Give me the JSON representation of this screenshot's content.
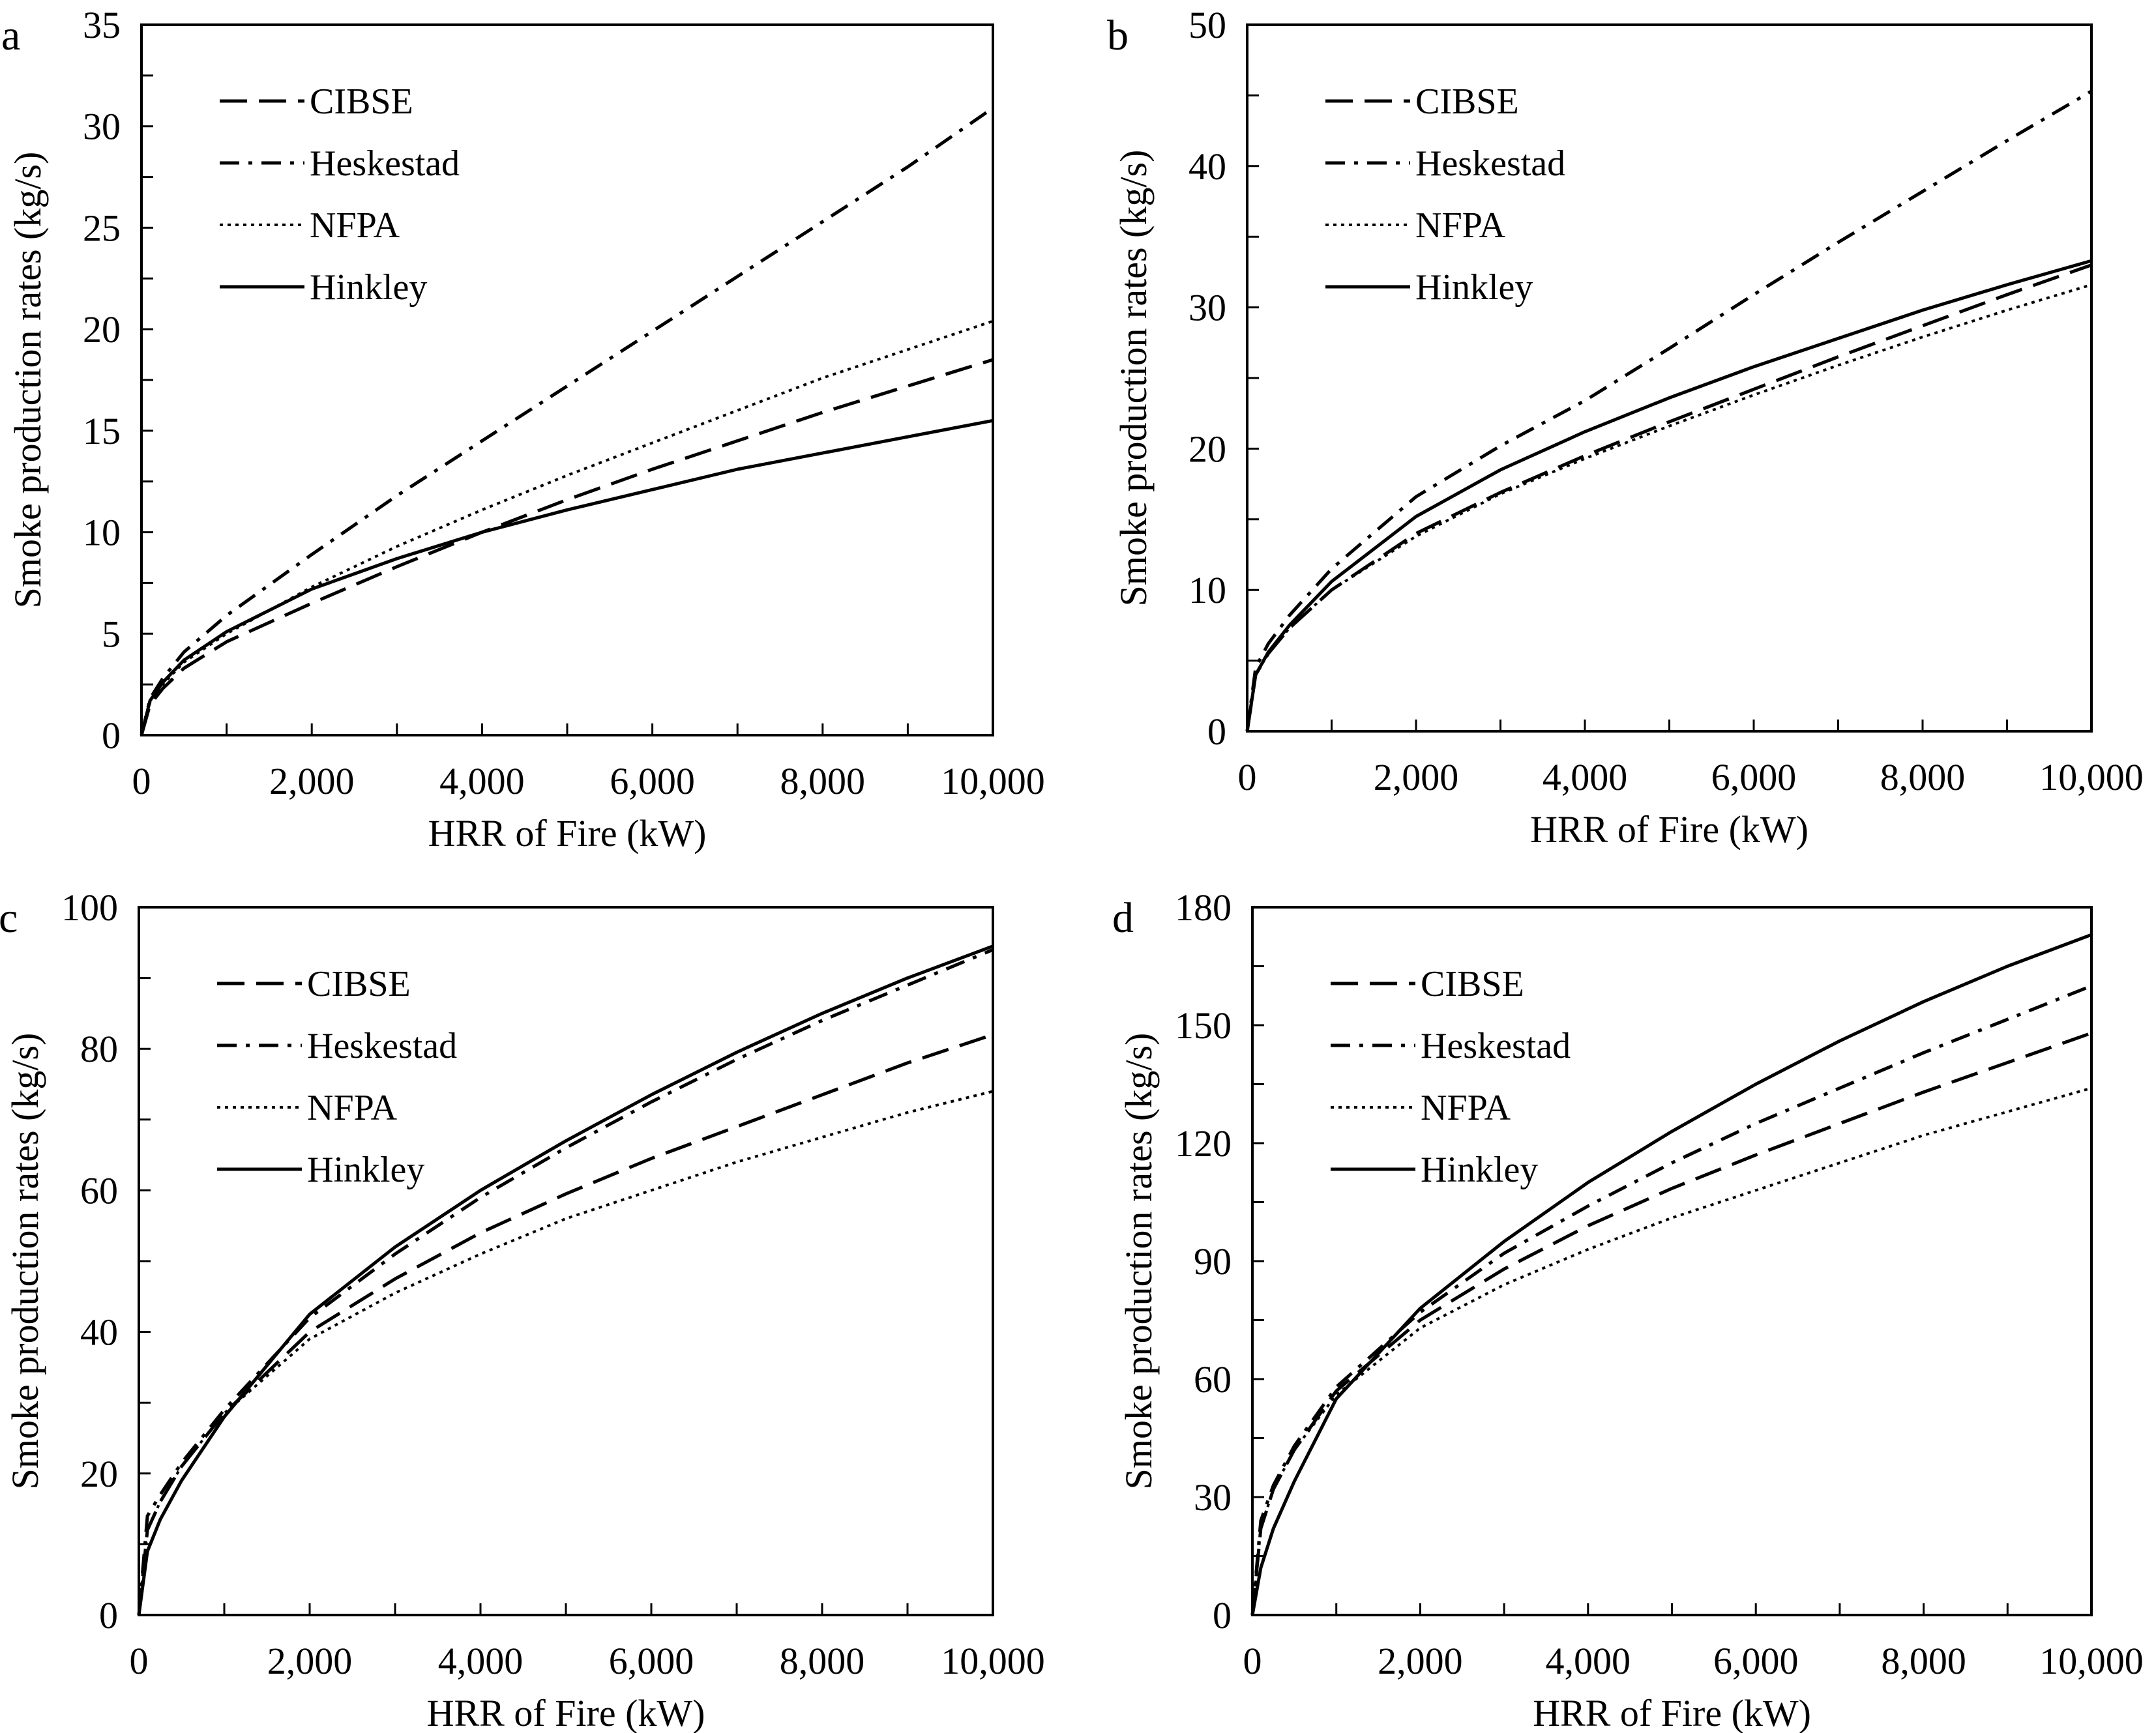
{
  "chart_data": [
    {
      "type": "line",
      "panel_label": "a",
      "xlabel": "HRR of Fire (kW)",
      "ylabel": "Smoke production rates (kg/s)",
      "xlim": [
        0,
        10000
      ],
      "ylim": [
        0,
        35
      ],
      "xticks": [
        0,
        2000,
        4000,
        6000,
        8000,
        10000
      ],
      "xtick_labels": [
        "0",
        "2,000",
        "4,000",
        "6,000",
        "8,000",
        "10,000"
      ],
      "yticks": [
        0,
        5,
        10,
        15,
        20,
        25,
        30,
        35
      ],
      "ytick_labels": [
        "0",
        "5",
        "10",
        "15",
        "20",
        "25",
        "30",
        "35"
      ],
      "grid": false,
      "legend_position": "top-left",
      "x": [
        0,
        100,
        250,
        500,
        1000,
        2000,
        3000,
        4000,
        5000,
        6000,
        7000,
        8000,
        9000,
        10000
      ],
      "series": [
        {
          "name": "CIBSE",
          "style": "dashed",
          "values": [
            0,
            1.5,
            2.3,
            3.3,
            4.6,
            6.5,
            8.3,
            10.0,
            11.6,
            13.1,
            14.5,
            15.9,
            17.2,
            18.5
          ]
        },
        {
          "name": "Heskestad",
          "style": "dash-dot",
          "values": [
            0,
            1.8,
            2.8,
            4.1,
            5.9,
            8.9,
            11.8,
            14.5,
            17.2,
            19.9,
            22.6,
            25.3,
            28.0,
            30.9
          ]
        },
        {
          "name": "NFPA",
          "style": "dotted",
          "values": [
            0,
            1.6,
            2.5,
            3.6,
            5.0,
            7.3,
            9.3,
            11.1,
            12.8,
            14.4,
            16.0,
            17.6,
            19.0,
            20.4
          ]
        },
        {
          "name": "Hinkley",
          "style": "solid",
          "values": [
            0,
            1.7,
            2.6,
            3.7,
            5.1,
            7.2,
            8.7,
            10.0,
            11.1,
            12.1,
            13.1,
            13.9,
            14.7,
            15.5
          ]
        }
      ]
    },
    {
      "type": "line",
      "panel_label": "b",
      "xlabel": "HRR of Fire (kW)",
      "ylabel": "Smoke production rates (kg/s)",
      "xlim": [
        0,
        10000
      ],
      "ylim": [
        0,
        50
      ],
      "xticks": [
        0,
        2000,
        4000,
        6000,
        8000,
        10000
      ],
      "xtick_labels": [
        "0",
        "2,000",
        "4,000",
        "6,000",
        "8,000",
        "10,000"
      ],
      "yticks": [
        0,
        10,
        20,
        30,
        40,
        50
      ],
      "ytick_labels": [
        "0",
        "10",
        "20",
        "30",
        "40",
        "50"
      ],
      "grid": false,
      "legend_position": "top-left",
      "x": [
        0,
        100,
        250,
        500,
        1000,
        2000,
        3000,
        4000,
        5000,
        6000,
        7000,
        8000,
        9000,
        10000
      ],
      "series": [
        {
          "name": "CIBSE",
          "style": "dashed",
          "values": [
            0,
            4.0,
            5.5,
            7.3,
            10.0,
            14.0,
            16.9,
            19.5,
            21.9,
            24.2,
            26.5,
            28.7,
            30.9,
            33.0
          ]
        },
        {
          "name": "Heskestad",
          "style": "dash-dot",
          "values": [
            0,
            4.5,
            6.2,
            8.2,
            11.5,
            16.6,
            20.2,
            23.4,
            27.1,
            30.9,
            34.6,
            38.2,
            41.8,
            45.3
          ]
        },
        {
          "name": "NFPA",
          "style": "dotted",
          "values": [
            0,
            4.0,
            5.5,
            7.3,
            10.0,
            13.8,
            16.8,
            19.3,
            21.6,
            23.8,
            25.9,
            27.9,
            29.8,
            31.6
          ]
        },
        {
          "name": "Hinkley",
          "style": "solid",
          "values": [
            0,
            4.0,
            5.6,
            7.5,
            10.6,
            15.2,
            18.5,
            21.2,
            23.6,
            25.8,
            27.8,
            29.8,
            31.6,
            33.3
          ]
        }
      ]
    },
    {
      "type": "line",
      "panel_label": "c",
      "xlabel": "HRR of Fire (kW)",
      "ylabel": "Smoke production rates (kg/s)",
      "xlim": [
        0,
        10000
      ],
      "ylim": [
        0,
        100
      ],
      "xticks": [
        0,
        2000,
        4000,
        6000,
        8000,
        10000
      ],
      "xtick_labels": [
        "0",
        "2,000",
        "4,000",
        "6,000",
        "8,000",
        "10,000"
      ],
      "yticks": [
        0,
        20,
        40,
        60,
        80,
        100
      ],
      "ytick_labels": [
        "0",
        "20",
        "40",
        "60",
        "80",
        "100"
      ],
      "grid": false,
      "legend_position": "top-left",
      "x": [
        0,
        100,
        250,
        500,
        1000,
        2000,
        3000,
        4000,
        5000,
        6000,
        7000,
        8000,
        9000,
        10000
      ],
      "series": [
        {
          "name": "CIBSE",
          "style": "dashed",
          "values": [
            0,
            12,
            16,
            21,
            28.5,
            40,
            47.5,
            54,
            59.5,
            64.5,
            69,
            73.5,
            78,
            82
          ]
        },
        {
          "name": "Heskestad",
          "style": "dash-dot",
          "values": [
            0,
            14,
            17,
            21.5,
            29,
            42,
            51,
            59,
            66,
            72.5,
            78.5,
            84,
            89,
            94
          ]
        },
        {
          "name": "NFPA",
          "style": "dotted",
          "values": [
            0,
            12,
            16,
            21,
            28.5,
            39,
            45.5,
            51,
            56,
            60,
            64,
            67.5,
            71,
            74
          ]
        },
        {
          "name": "Hinkley",
          "style": "solid",
          "values": [
            0,
            9,
            13.5,
            19,
            28,
            42.5,
            52,
            60,
            67,
            73.5,
            79.5,
            85,
            90,
            94.5
          ]
        }
      ]
    },
    {
      "type": "line",
      "panel_label": "d",
      "xlabel": "HRR of Fire (kW)",
      "ylabel": "Smoke production rates (kg/s)",
      "xlim": [
        0,
        10000
      ],
      "ylim": [
        0,
        180
      ],
      "xticks": [
        0,
        2000,
        4000,
        6000,
        8000,
        10000
      ],
      "xtick_labels": [
        "0",
        "2,000",
        "4,000",
        "6,000",
        "8,000",
        "10,000"
      ],
      "yticks": [
        0,
        30,
        60,
        90,
        120,
        150,
        180
      ],
      "ytick_labels": [
        "0",
        "30",
        "60",
        "90",
        "120",
        "150",
        "180"
      ],
      "grid": false,
      "legend_position": "top-left",
      "x": [
        0,
        100,
        250,
        500,
        1000,
        2000,
        3000,
        4000,
        5000,
        6000,
        7000,
        8000,
        9000,
        10000
      ],
      "series": [
        {
          "name": "CIBSE",
          "style": "dashed",
          "values": [
            0,
            22,
            32,
            42,
            57,
            75,
            88,
            99,
            108.5,
            117,
            125,
            133,
            140.5,
            148
          ]
        },
        {
          "name": "Heskestad",
          "style": "dash-dot",
          "values": [
            0,
            24,
            33,
            43,
            58,
            77,
            92,
            104,
            115,
            125,
            134,
            143,
            151.5,
            160
          ]
        },
        {
          "name": "NFPA",
          "style": "dotted",
          "values": [
            0,
            22,
            32,
            42,
            56,
            73,
            84,
            93,
            101,
            108,
            115,
            122,
            128,
            134
          ]
        },
        {
          "name": "Hinkley",
          "style": "solid",
          "values": [
            0,
            12,
            22,
            34,
            55,
            78,
            95,
            110,
            123,
            135,
            146,
            156,
            165,
            173
          ]
        }
      ]
    }
  ]
}
